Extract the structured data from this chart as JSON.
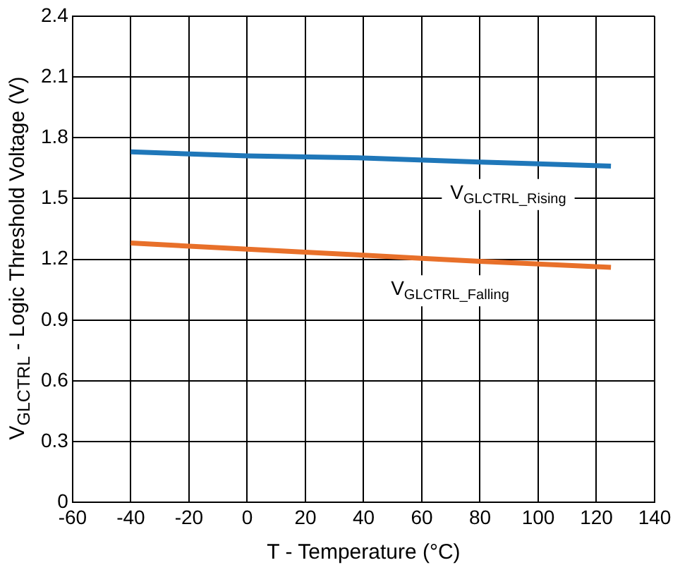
{
  "chart_data": {
    "type": "line",
    "xlabel": "T - Temperature (°C)",
    "ylabel": "V$_{GLCTRL}$ - Logic Threshold Voltage (V)",
    "xlim": [
      -60,
      140
    ],
    "xticks": [
      -60,
      -40,
      -20,
      0,
      20,
      40,
      60,
      80,
      100,
      120,
      140
    ],
    "ylim": [
      0,
      2.4
    ],
    "yticks": [
      0,
      0.3,
      0.6,
      0.9,
      1.2,
      1.5,
      1.8,
      2.1,
      2.4
    ],
    "grid": true,
    "legend": false,
    "marker": "none",
    "line_style": "solid",
    "series": [
      {
        "name": "V$_{GLCTRL_Rising}$",
        "color": "#1f77b9",
        "x": [
          -40,
          0,
          40,
          80,
          125
        ],
        "values": [
          1.73,
          1.71,
          1.7,
          1.68,
          1.66
        ]
      },
      {
        "name": "V$_{GLCTRL_Falling}$",
        "color": "#e8702a",
        "x": [
          -40,
          0,
          40,
          60,
          80,
          125
        ],
        "values": [
          1.28,
          1.25,
          1.22,
          1.205,
          1.19,
          1.16
        ]
      }
    ]
  }
}
